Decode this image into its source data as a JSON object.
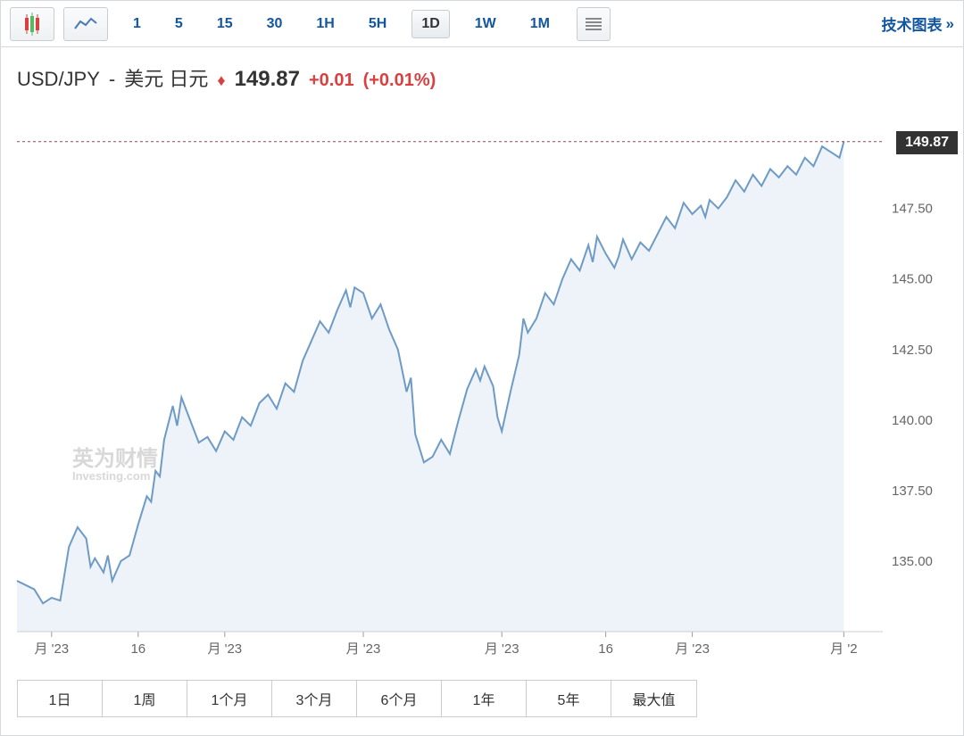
{
  "toolbar": {
    "timeframes": [
      "1",
      "5",
      "15",
      "30",
      "1H",
      "5H",
      "1D",
      "1W",
      "1M"
    ],
    "active_index": 6,
    "tech_chart_label": "技术图表"
  },
  "header": {
    "symbol": "USD/JPY",
    "separator": "-",
    "pair_name": "美元 日元",
    "arrow": "♦",
    "price": "149.87",
    "change": "+0.01",
    "change_pct": "(+0.01%)"
  },
  "chart": {
    "type": "area",
    "line_color": "#6e9bc5",
    "fill_color": "#edf3f8",
    "background": "#ffffff",
    "ref_line_color": "#8b4a4a",
    "ref_line_y": 149.87,
    "ref_line_dash": "3,3",
    "ylim": [
      132.5,
      151.0
    ],
    "yticks": [
      135.0,
      137.5,
      140.0,
      142.5,
      145.0,
      147.5
    ],
    "ytick_format": "0.00",
    "ytick_color": "#666666",
    "ytick_fontsize": 15,
    "xticks": [
      "月 '23",
      "16",
      "月 '23",
      "月 '23",
      "月 '23",
      "16",
      "月 '23",
      "月 '2"
    ],
    "xtick_positions": [
      0.04,
      0.14,
      0.24,
      0.4,
      0.56,
      0.68,
      0.78,
      0.955
    ],
    "xtick_color": "#666666",
    "xtick_fontsize": 15,
    "price_badge": "149.87",
    "badge_bg": "#333333",
    "badge_color": "#ffffff",
    "data": [
      [
        0.0,
        134.3
      ],
      [
        0.02,
        134.0
      ],
      [
        0.03,
        133.5
      ],
      [
        0.04,
        133.7
      ],
      [
        0.05,
        133.6
      ],
      [
        0.06,
        135.5
      ],
      [
        0.07,
        136.2
      ],
      [
        0.08,
        135.8
      ],
      [
        0.085,
        134.8
      ],
      [
        0.09,
        135.1
      ],
      [
        0.1,
        134.6
      ],
      [
        0.105,
        135.2
      ],
      [
        0.11,
        134.3
      ],
      [
        0.12,
        135.0
      ],
      [
        0.13,
        135.2
      ],
      [
        0.14,
        136.3
      ],
      [
        0.15,
        137.3
      ],
      [
        0.155,
        137.1
      ],
      [
        0.16,
        138.2
      ],
      [
        0.165,
        138.0
      ],
      [
        0.17,
        139.3
      ],
      [
        0.18,
        140.5
      ],
      [
        0.185,
        139.8
      ],
      [
        0.19,
        140.8
      ],
      [
        0.2,
        140.0
      ],
      [
        0.21,
        139.2
      ],
      [
        0.22,
        139.4
      ],
      [
        0.23,
        138.9
      ],
      [
        0.24,
        139.6
      ],
      [
        0.25,
        139.3
      ],
      [
        0.26,
        140.1
      ],
      [
        0.27,
        139.8
      ],
      [
        0.28,
        140.6
      ],
      [
        0.29,
        140.9
      ],
      [
        0.3,
        140.4
      ],
      [
        0.31,
        141.3
      ],
      [
        0.32,
        141.0
      ],
      [
        0.33,
        142.1
      ],
      [
        0.34,
        142.8
      ],
      [
        0.35,
        143.5
      ],
      [
        0.36,
        143.1
      ],
      [
        0.37,
        143.9
      ],
      [
        0.38,
        144.6
      ],
      [
        0.385,
        144.0
      ],
      [
        0.39,
        144.7
      ],
      [
        0.4,
        144.5
      ],
      [
        0.41,
        143.6
      ],
      [
        0.42,
        144.1
      ],
      [
        0.43,
        143.2
      ],
      [
        0.44,
        142.5
      ],
      [
        0.45,
        141.0
      ],
      [
        0.455,
        141.5
      ],
      [
        0.46,
        139.5
      ],
      [
        0.47,
        138.5
      ],
      [
        0.48,
        138.7
      ],
      [
        0.49,
        139.3
      ],
      [
        0.5,
        138.8
      ],
      [
        0.51,
        140.0
      ],
      [
        0.52,
        141.1
      ],
      [
        0.53,
        141.8
      ],
      [
        0.535,
        141.4
      ],
      [
        0.54,
        141.9
      ],
      [
        0.55,
        141.2
      ],
      [
        0.555,
        140.1
      ],
      [
        0.56,
        139.6
      ],
      [
        0.57,
        141.0
      ],
      [
        0.58,
        142.3
      ],
      [
        0.585,
        143.6
      ],
      [
        0.59,
        143.1
      ],
      [
        0.6,
        143.6
      ],
      [
        0.61,
        144.5
      ],
      [
        0.62,
        144.1
      ],
      [
        0.63,
        145.0
      ],
      [
        0.64,
        145.7
      ],
      [
        0.65,
        145.3
      ],
      [
        0.66,
        146.2
      ],
      [
        0.665,
        145.6
      ],
      [
        0.67,
        146.5
      ],
      [
        0.68,
        145.9
      ],
      [
        0.69,
        145.4
      ],
      [
        0.695,
        145.8
      ],
      [
        0.7,
        146.4
      ],
      [
        0.71,
        145.7
      ],
      [
        0.72,
        146.3
      ],
      [
        0.73,
        146.0
      ],
      [
        0.74,
        146.6
      ],
      [
        0.75,
        147.2
      ],
      [
        0.76,
        146.8
      ],
      [
        0.77,
        147.7
      ],
      [
        0.78,
        147.3
      ],
      [
        0.79,
        147.6
      ],
      [
        0.795,
        147.2
      ],
      [
        0.8,
        147.8
      ],
      [
        0.81,
        147.5
      ],
      [
        0.82,
        147.9
      ],
      [
        0.83,
        148.5
      ],
      [
        0.84,
        148.1
      ],
      [
        0.85,
        148.7
      ],
      [
        0.86,
        148.3
      ],
      [
        0.87,
        148.9
      ],
      [
        0.88,
        148.6
      ],
      [
        0.89,
        149.0
      ],
      [
        0.9,
        148.7
      ],
      [
        0.91,
        149.3
      ],
      [
        0.92,
        149.0
      ],
      [
        0.93,
        149.7
      ],
      [
        0.94,
        149.5
      ],
      [
        0.95,
        149.3
      ],
      [
        0.955,
        149.87
      ]
    ]
  },
  "watermark": {
    "top": "英为财情",
    "bottom": "Investing.com"
  },
  "periods": [
    "1日",
    "1周",
    "1个月",
    "3个月",
    "6个月",
    "1年",
    "5年",
    "最大值"
  ]
}
